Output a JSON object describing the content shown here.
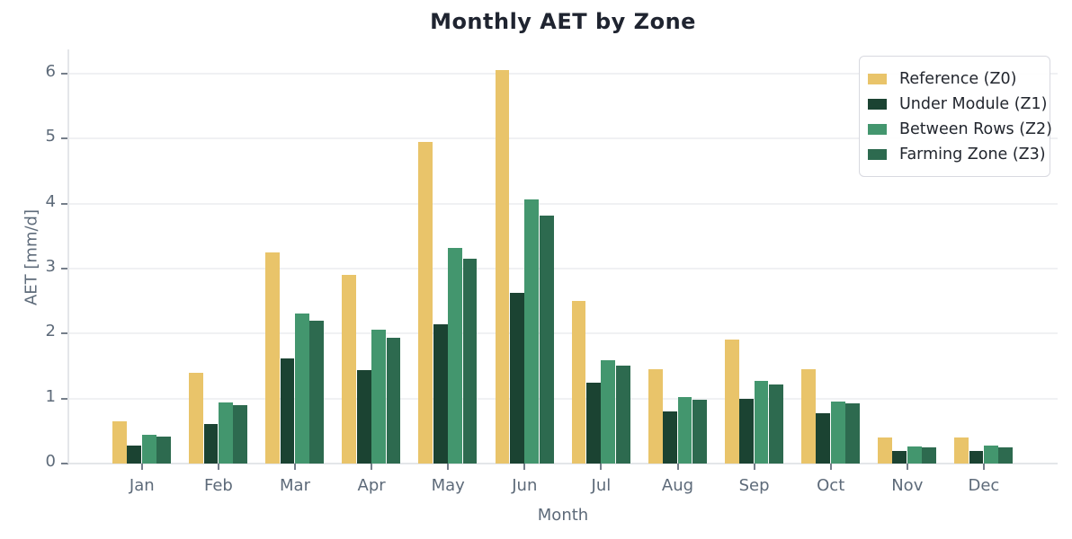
{
  "title": "Monthly AET by Zone",
  "chart_data": {
    "type": "bar",
    "title": "Monthly AET by Zone",
    "xlabel": "Month",
    "ylabel": "AET [mm/d]",
    "categories": [
      "Jan",
      "Feb",
      "Mar",
      "Apr",
      "May",
      "Jun",
      "Jul",
      "Aug",
      "Sep",
      "Oct",
      "Nov",
      "Dec"
    ],
    "series": [
      {
        "name": "Reference (Z0)",
        "color": "#E9C46A",
        "values": [
          0.65,
          1.4,
          3.25,
          2.9,
          4.95,
          6.05,
          2.5,
          1.45,
          1.91,
          1.45,
          0.4,
          0.4
        ]
      },
      {
        "name": "Under Module (Z1)",
        "color": "#1B4332",
        "values": [
          0.28,
          0.61,
          1.62,
          1.44,
          2.14,
          2.62,
          1.25,
          0.8,
          1.0,
          0.77,
          0.2,
          0.2
        ]
      },
      {
        "name": "Between Rows (Z2)",
        "color": "#43966E",
        "values": [
          0.44,
          0.94,
          2.31,
          2.06,
          3.32,
          4.07,
          1.59,
          1.03,
          1.27,
          0.96,
          0.26,
          0.27
        ]
      },
      {
        "name": "Farming Zone (Z3)",
        "color": "#2D6A4F",
        "values": [
          0.41,
          0.9,
          2.2,
          1.93,
          3.15,
          3.82,
          1.51,
          0.98,
          1.21,
          0.93,
          0.25,
          0.25
        ]
      }
    ],
    "yticks": [
      0,
      1,
      2,
      3,
      4,
      5,
      6
    ],
    "ylim": [
      0,
      6.38
    ],
    "grid": true,
    "legend_position": "upper right"
  },
  "colors": {
    "background": "#ffffff",
    "title_text": "#1f2430",
    "axis_text": "#5d6a79",
    "gridline": "#f0f1f3",
    "axis_spine": "#e4e6e9",
    "tick_mark": "#757e8a",
    "legend_border": "#d8d9e0",
    "legend_text": "#22262e"
  }
}
